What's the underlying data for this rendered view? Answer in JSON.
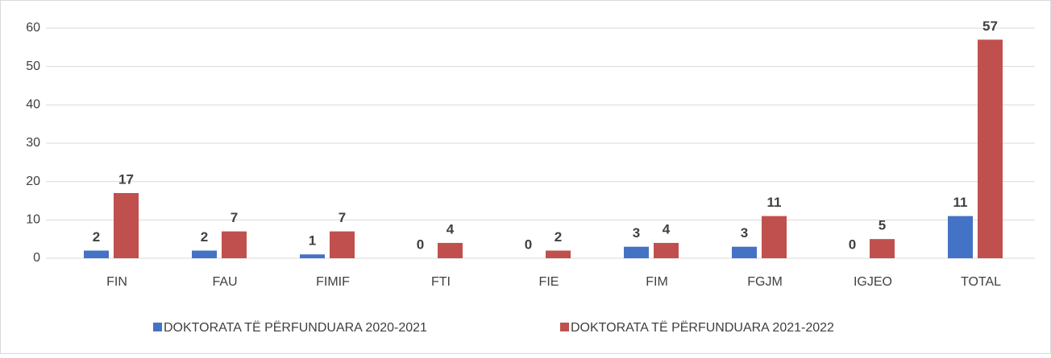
{
  "chart_data": {
    "type": "bar",
    "categories": [
      "FIN",
      "FAU",
      "FIMIF",
      "FTI",
      "FIE",
      "FIM",
      "FGJM",
      "IGJEO",
      "TOTAL"
    ],
    "series": [
      {
        "name": "DOKTORATA TË PËRFUNDUARA 2020-2021",
        "color": "#4472c4",
        "values": [
          2,
          2,
          1,
          0,
          0,
          3,
          3,
          0,
          11
        ]
      },
      {
        "name": "DOKTORATA TË PËRFUNDUARA 2021-2022",
        "color": "#c0504d",
        "values": [
          17,
          7,
          7,
          4,
          2,
          4,
          11,
          5,
          57
        ]
      }
    ],
    "ylim": [
      0,
      60
    ],
    "yticks": [
      0,
      10,
      20,
      30,
      40,
      50,
      60
    ],
    "grid": true,
    "legend": "bottom"
  }
}
